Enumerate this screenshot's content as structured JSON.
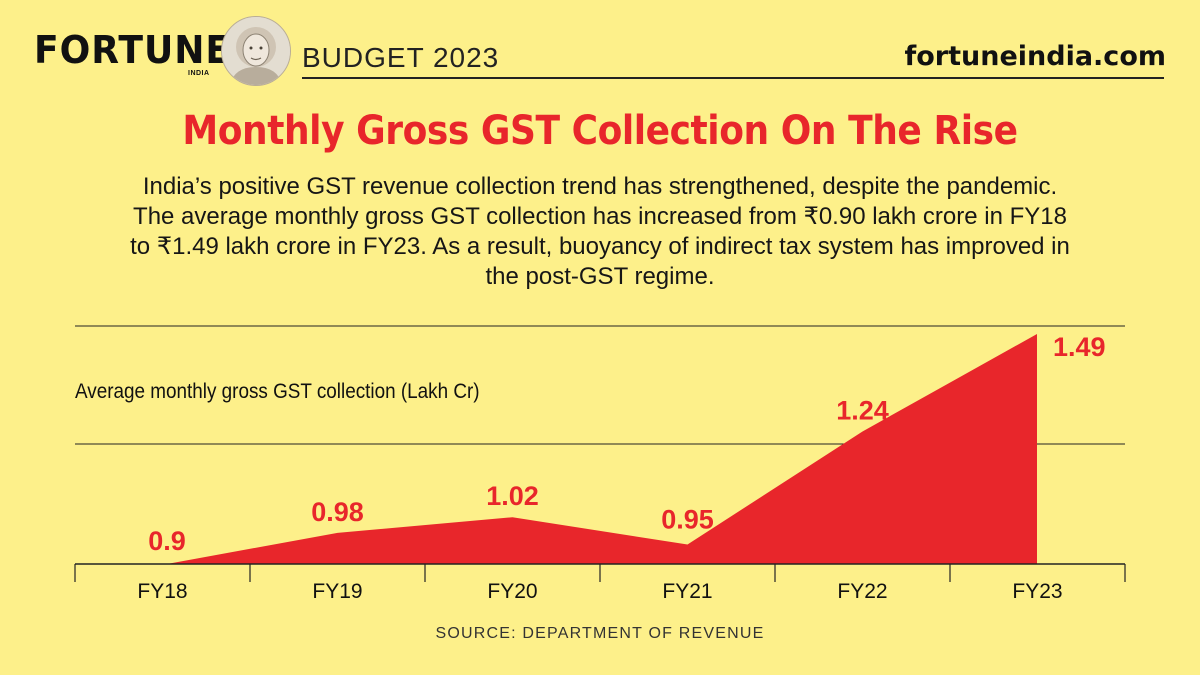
{
  "header": {
    "brand": "FORTUNE",
    "brand_sub": "INDIA",
    "label": "BUDGET 2023",
    "site": "fortuneindia.com"
  },
  "title": "Monthly Gross GST Collection On The Rise",
  "subtitle": "India’s positive GST revenue collection trend has strengthened, despite the pandemic. The average monthly gross GST collection has increased from ₹0.90 lakh crore in FY18 to ₹1.49 lakh crore in FY23. As a result, buoyancy of indirect tax system has improved in the post-GST regime.",
  "source": "SOURCE: DEPARTMENT OF REVENUE",
  "colors": {
    "background": "#fdf08a",
    "accent": "#e8262b",
    "text": "#111111"
  },
  "chart_data": {
    "type": "area",
    "title": "",
    "ylabel": "Average monthly gross GST collection (Lakh Cr)",
    "xlabel": "",
    "categories": [
      "FY18",
      "FY19",
      "FY20",
      "FY21",
      "FY22",
      "FY23"
    ],
    "values": [
      0.9,
      0.98,
      1.02,
      0.95,
      1.24,
      1.49
    ],
    "value_labels": [
      "0.9",
      "0.98",
      "1.02",
      "0.95",
      "1.24",
      "1.49"
    ],
    "ylim": [
      0.9,
      1.49
    ],
    "grid": true,
    "series_color": "#e8262b"
  }
}
